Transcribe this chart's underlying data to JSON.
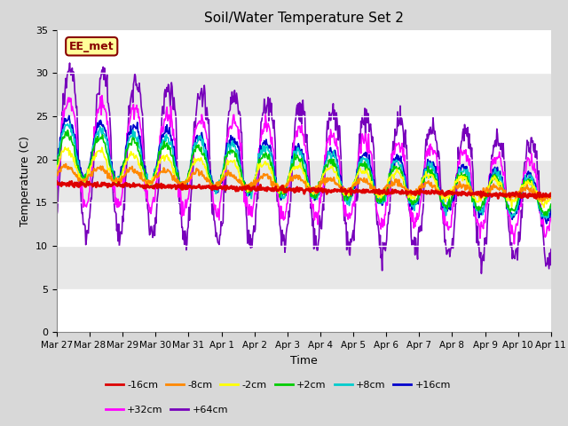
{
  "title": "Soil/Water Temperature Set 2",
  "xlabel": "Time",
  "ylabel": "Temperature (C)",
  "ylim": [
    0,
    35
  ],
  "yticks": [
    0,
    5,
    10,
    15,
    20,
    25,
    30,
    35
  ],
  "fig_bg": "#d8d8d8",
  "plot_bg": "#f0f0f0",
  "annotation_text": "EE_met",
  "annotation_bg": "#ffff99",
  "annotation_border": "#880000",
  "series_colors": {
    "-16cm": "#dd0000",
    "-8cm": "#ff8800",
    "-2cm": "#ffff00",
    "+2cm": "#00cc00",
    "+8cm": "#00cccc",
    "+16cm": "#0000cc",
    "+32cm": "#ff00ff",
    "+64cm": "#7700bb"
  },
  "x_tick_labels": [
    "Mar 27",
    "Mar 28",
    "Mar 29",
    "Mar 30",
    "Mar 31",
    "Apr 1",
    "Apr 2",
    "Apr 3",
    "Apr 4",
    "Apr 5",
    "Apr 6",
    "Apr 7",
    "Apr 8",
    "Apr 9",
    "Apr 10",
    "Apr 11"
  ],
  "band_colors": [
    "#ffffff",
    "#e8e8e8"
  ],
  "band_ranges": [
    [
      30,
      35
    ],
    [
      25,
      30
    ],
    [
      20,
      25
    ],
    [
      15,
      20
    ],
    [
      10,
      15
    ],
    [
      5,
      10
    ],
    [
      0,
      5
    ]
  ]
}
